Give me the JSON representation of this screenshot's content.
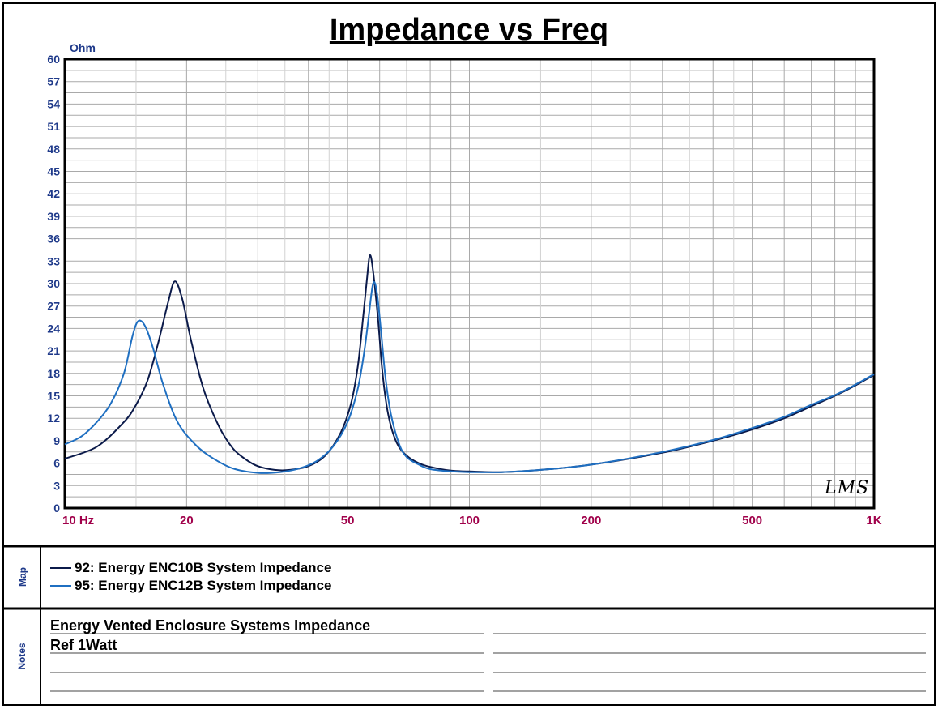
{
  "title": "Impedance vs Freq",
  "chart_data": {
    "type": "line",
    "title": "Impedance vs Freq",
    "ylabel": "Ohm",
    "xscale": "log",
    "xlim": [
      10,
      1000
    ],
    "ylim": [
      0,
      60
    ],
    "grid": true,
    "y_ticks": [
      0,
      3,
      6,
      9,
      12,
      15,
      18,
      21,
      24,
      27,
      30,
      33,
      36,
      39,
      42,
      45,
      48,
      51,
      54,
      57,
      60
    ],
    "x_tick_labels": [
      {
        "value": 10,
        "label": "10 Hz"
      },
      {
        "value": 20,
        "label": "20"
      },
      {
        "value": 50,
        "label": "50"
      },
      {
        "value": 100,
        "label": "100"
      },
      {
        "value": 200,
        "label": "200"
      },
      {
        "value": 500,
        "label": "500"
      },
      {
        "value": 1000,
        "label": "1K"
      }
    ],
    "series": [
      {
        "name": "92: Energy ENC10B System Impedance",
        "color": "#0b1a4a",
        "points": [
          [
            10,
            6.6
          ],
          [
            12,
            8.2
          ],
          [
            14,
            11.5
          ],
          [
            15,
            13.8
          ],
          [
            16,
            17.0
          ],
          [
            17,
            22.0
          ],
          [
            18,
            27.5
          ],
          [
            18.7,
            30.3
          ],
          [
            19.5,
            28.0
          ],
          [
            20.5,
            22.5
          ],
          [
            22,
            16.0
          ],
          [
            24,
            11.0
          ],
          [
            26,
            8.0
          ],
          [
            28,
            6.5
          ],
          [
            30,
            5.6
          ],
          [
            33,
            5.1
          ],
          [
            36,
            5.1
          ],
          [
            40,
            5.6
          ],
          [
            44,
            7.0
          ],
          [
            48,
            10.0
          ],
          [
            51,
            14.0
          ],
          [
            53,
            19.0
          ],
          [
            54.5,
            25.0
          ],
          [
            55.8,
            30.5
          ],
          [
            56.8,
            33.8
          ],
          [
            58,
            31.0
          ],
          [
            59.5,
            25.0
          ],
          [
            61,
            18.0
          ],
          [
            63,
            12.5
          ],
          [
            66,
            8.8
          ],
          [
            70,
            7.0
          ],
          [
            75,
            6.0
          ],
          [
            80,
            5.5
          ],
          [
            90,
            5.0
          ],
          [
            100,
            4.9
          ],
          [
            120,
            4.8
          ],
          [
            150,
            5.1
          ],
          [
            200,
            5.8
          ],
          [
            300,
            7.4
          ],
          [
            400,
            9.0
          ],
          [
            500,
            10.5
          ],
          [
            600,
            12.0
          ],
          [
            700,
            13.6
          ],
          [
            800,
            15.0
          ],
          [
            900,
            16.4
          ],
          [
            1000,
            17.8
          ]
        ]
      },
      {
        "name": "95: Energy ENC12B System Impedance",
        "color": "#1f6fc1",
        "points": [
          [
            10,
            8.5
          ],
          [
            11,
            9.6
          ],
          [
            12,
            11.5
          ],
          [
            13,
            14.0
          ],
          [
            14,
            18.0
          ],
          [
            14.7,
            23.0
          ],
          [
            15.2,
            25.0
          ],
          [
            15.8,
            24.3
          ],
          [
            16.5,
            21.5
          ],
          [
            17.5,
            16.5
          ],
          [
            19,
            11.5
          ],
          [
            21,
            8.5
          ],
          [
            23,
            6.8
          ],
          [
            26,
            5.3
          ],
          [
            30,
            4.7
          ],
          [
            34,
            4.8
          ],
          [
            38,
            5.3
          ],
          [
            42,
            6.3
          ],
          [
            46,
            8.2
          ],
          [
            50,
            11.5
          ],
          [
            53,
            16.0
          ],
          [
            55,
            21.0
          ],
          [
            56.5,
            26.0
          ],
          [
            57.8,
            30.0
          ],
          [
            59,
            29.0
          ],
          [
            60.5,
            23.5
          ],
          [
            62,
            17.5
          ],
          [
            64,
            12.5
          ],
          [
            67,
            8.6
          ],
          [
            70,
            6.8
          ],
          [
            75,
            5.8
          ],
          [
            80,
            5.2
          ],
          [
            90,
            4.9
          ],
          [
            100,
            4.8
          ],
          [
            120,
            4.8
          ],
          [
            150,
            5.1
          ],
          [
            200,
            5.8
          ],
          [
            300,
            7.5
          ],
          [
            400,
            9.1
          ],
          [
            500,
            10.7
          ],
          [
            600,
            12.2
          ],
          [
            700,
            13.8
          ],
          [
            800,
            15.1
          ],
          [
            900,
            16.5
          ],
          [
            1000,
            17.9
          ]
        ]
      }
    ]
  },
  "sections": {
    "map_label": "Map",
    "notes_label": "Notes"
  },
  "legend": [
    {
      "label": "92: Energy ENC10B System Impedance",
      "color": "#0b1a4a"
    },
    {
      "label": "95: Energy ENC12B System Impedance",
      "color": "#1f6fc1"
    }
  ],
  "notes": [
    "Energy Vented Enclosure Systems Impedance",
    "Ref 1Watt"
  ],
  "watermark": "LMS",
  "colors": {
    "axis_text": "#1f3a8a",
    "x_tick_text": "#a0004a",
    "grid": "#a9a9a9"
  }
}
